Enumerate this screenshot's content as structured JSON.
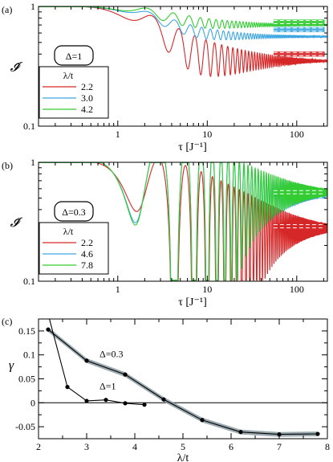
{
  "chart_data": [
    {
      "panel_label": "(a)",
      "type": "line",
      "xscale": "log",
      "yscale": "log",
      "xlim": [
        0.13,
        220
      ],
      "ylim": [
        0.1,
        1
      ],
      "x_ticks": [
        {
          "v": 1,
          "label": "1"
        },
        {
          "v": 10,
          "label": "10"
        },
        {
          "v": 100,
          "label": "100"
        }
      ],
      "y_ticks": [
        {
          "v": 1,
          "label": "1"
        },
        {
          "v": 0.1,
          "label": "0.1"
        }
      ],
      "xlabel": "τ [J⁻¹]",
      "ylabel": "𝓘̄",
      "param_label": "Δ=1",
      "legend_title": "λ/t",
      "legend_placement": "left",
      "series": [
        {
          "name": "2.2",
          "color": "#d62728",
          "sat": 0.35,
          "A": 0.17,
          "omega": 2.6,
          "mag": 1,
          "plateau": 0.4
        },
        {
          "name": "3.0",
          "color": "#3ea7e0",
          "sat": 0.56,
          "A": 0.08,
          "omega": 2.9,
          "mag": 1,
          "plateau": 0.64
        },
        {
          "name": "4.2",
          "color": "#33cc33",
          "sat": 0.7,
          "A": 0.09,
          "omega": 3.0,
          "mag": 1,
          "plateau": 0.74
        }
      ]
    },
    {
      "panel_label": "(b)",
      "type": "line",
      "xscale": "log",
      "yscale": "log",
      "xlim": [
        0.13,
        220
      ],
      "ylim": [
        0.1,
        1
      ],
      "x_ticks": [
        {
          "v": 1,
          "label": "1"
        },
        {
          "v": 10,
          "label": "10"
        },
        {
          "v": 100,
          "label": "100"
        }
      ],
      "y_ticks": [
        {
          "v": 1,
          "label": "1"
        },
        {
          "v": 0.1,
          "label": "0.1"
        }
      ],
      "xlabel": "τ [J⁻¹]",
      "ylabel": "𝓘̄",
      "param_label": "Δ=0.3",
      "legend_title": "λ/t",
      "legend_placement": "left",
      "series": [
        {
          "name": "2.2",
          "color": "#d62728",
          "sat": 0.28,
          "A": 0.63,
          "omega": 2.2,
          "mag": 1,
          "plateau": 0.29
        },
        {
          "name": "4.6",
          "color": "#3ea7e0",
          "sat": 0.55,
          "A": 0.92,
          "omega": 2.2,
          "mag": 1,
          "plateau": 0.52
        },
        {
          "name": "7.8",
          "color": "#33cc33",
          "sat": 0.56,
          "A": 0.95,
          "omega": 2.2,
          "mag": 1,
          "plateau": 0.56
        }
      ]
    },
    {
      "panel_label": "(c)",
      "type": "line",
      "xlim": [
        2,
        8
      ],
      "ylim": [
        -0.075,
        0.175
      ],
      "x_ticks": [
        {
          "v": 2,
          "label": "2"
        },
        {
          "v": 3,
          "label": "3"
        },
        {
          "v": 4,
          "label": "4"
        },
        {
          "v": 5,
          "label": "5"
        },
        {
          "v": 6,
          "label": "6"
        },
        {
          "v": 7,
          "label": "7"
        },
        {
          "v": 8,
          "label": "8"
        }
      ],
      "y_ticks": [
        {
          "v": 0.15,
          "label": "0.15"
        },
        {
          "v": 0.1,
          "label": "0.1"
        },
        {
          "v": 0.05,
          "label": "0.05"
        },
        {
          "v": 0,
          "label": "0"
        },
        {
          "v": -0.05,
          "label": "-0.05"
        }
      ],
      "xlabel": "λ/t",
      "ylabel": "γ",
      "zero_line": true,
      "series": [
        {
          "label": "Δ=0.3",
          "label_at": [
            3.6,
            0.095
          ],
          "color": "#000000",
          "band_color": "#8a9aa2",
          "band": 0.005,
          "x": [
            2.2,
            3.0,
            3.8,
            4.6,
            5.4,
            6.2,
            7.0,
            7.8
          ],
          "y": [
            0.153,
            0.088,
            0.059,
            0.007,
            -0.036,
            -0.061,
            -0.066,
            -0.065
          ]
        },
        {
          "label": "Δ=1",
          "label_at": [
            3.6,
            0.028
          ],
          "color": "#000000",
          "x": [
            2.2,
            2.6,
            3.0,
            3.4,
            3.8,
            4.2
          ],
          "y": [
            0.185,
            0.033,
            0.004,
            0.006,
            -0.001,
            -0.004
          ]
        }
      ]
    }
  ]
}
